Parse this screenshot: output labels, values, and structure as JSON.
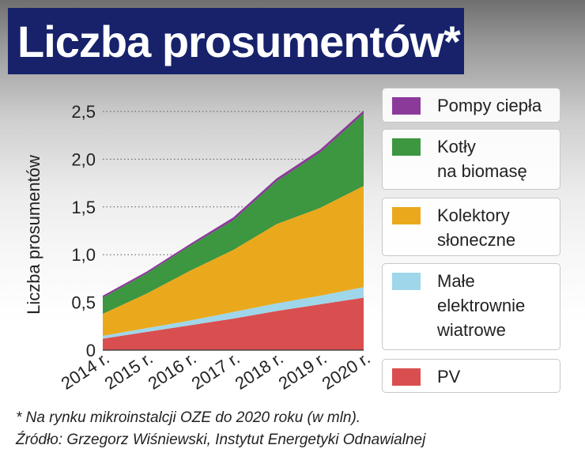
{
  "title": "Liczba prosumentów*",
  "chart_data": {
    "type": "area",
    "stacked": true,
    "categories": [
      "2014 r.",
      "2015 r.",
      "2016 r.",
      "2017 r.",
      "2018 r.",
      "2019 r.",
      "2020 r."
    ],
    "ylabel": "Liczba prosumentów",
    "ylim": [
      0,
      2.5
    ],
    "yticks": [
      "0",
      "0,5",
      "1,0",
      "1,5",
      "2,0",
      "2,5"
    ],
    "ytick_values": [
      0,
      0.5,
      1.0,
      1.5,
      2.0,
      2.5
    ],
    "grid": "horizontal dotted",
    "legend_position": "right",
    "series": [
      {
        "name": "PV",
        "color": "#d94f4f",
        "values": [
          0.12,
          0.19,
          0.26,
          0.33,
          0.41,
          0.48,
          0.55
        ]
      },
      {
        "name": "Małe\nelektrownie\nwiatrowe",
        "color": "#9fd6ea",
        "values": [
          0.03,
          0.04,
          0.05,
          0.07,
          0.08,
          0.09,
          0.11
        ]
      },
      {
        "name": "Kolektory\nsłoneczne",
        "color": "#eaa91d",
        "values": [
          0.23,
          0.36,
          0.52,
          0.65,
          0.83,
          0.92,
          1.06
        ]
      },
      {
        "name": "Kotły\nna biomasę",
        "color": "#3d9640",
        "values": [
          0.17,
          0.21,
          0.26,
          0.31,
          0.45,
          0.58,
          0.76
        ]
      },
      {
        "name": "Pompy ciepła",
        "color": "#8c3a9a",
        "values": [
          0.02,
          0.02,
          0.02,
          0.03,
          0.03,
          0.03,
          0.03
        ]
      }
    ]
  },
  "footnote": {
    "line1": "* Na rynku mikroinstalcji OZE do 2020 roku (w mln).",
    "line2": "Źródło: Grzegorz Wiśniewski, Instytut Energetyki Odnawialnej"
  }
}
